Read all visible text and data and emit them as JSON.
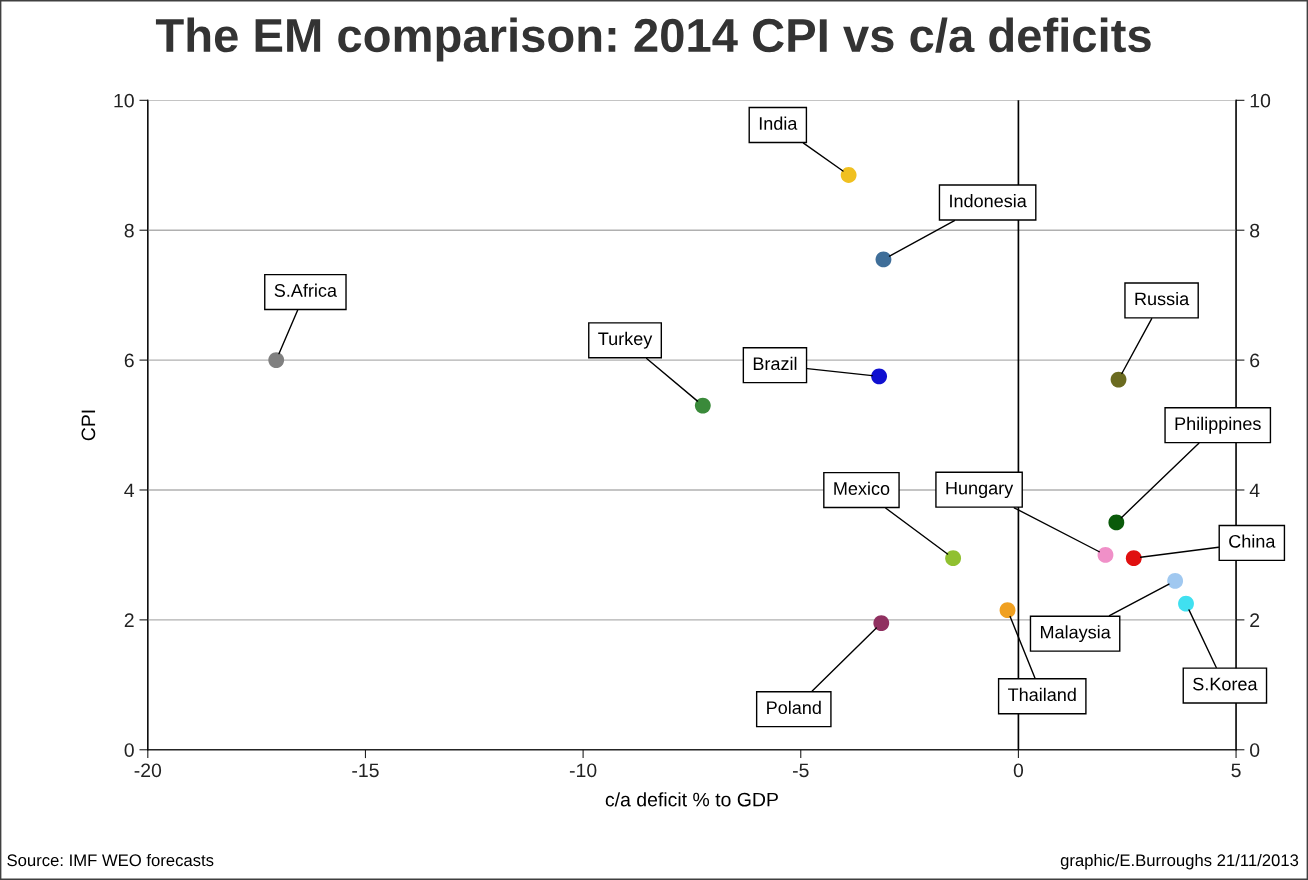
{
  "chart_data": {
    "type": "scatter",
    "title": "The EM comparison: 2014 CPI vs c/a deficits",
    "xlabel": "c/a deficit % to GDP",
    "ylabel": "CPI",
    "xlim": [
      -20,
      5
    ],
    "xticks": [
      -20,
      -15,
      -10,
      -5,
      0,
      5
    ],
    "ylim": [
      0,
      10
    ],
    "yticks": [
      0,
      2,
      4,
      6,
      8,
      10
    ],
    "y2lim": [
      0,
      10
    ],
    "y2ticks": [
      0,
      2,
      4,
      6,
      8,
      10
    ],
    "grid": "y",
    "legend": false,
    "marker": "circle",
    "ref_lines": [
      {
        "axis": "x",
        "value": 0,
        "color": "#000000"
      }
    ],
    "series": [
      {
        "name": "India",
        "color": "#f0c020",
        "x": [
          -3.9
        ],
        "values": [
          8.85
        ]
      },
      {
        "name": "Indonesia",
        "color": "#3f6e99",
        "x": [
          -3.1
        ],
        "values": [
          7.55
        ]
      },
      {
        "name": "S.Africa",
        "color": "#808080",
        "x": [
          -17.05
        ],
        "values": [
          6.0
        ]
      },
      {
        "name": "Turkey",
        "color": "#3a8a3a",
        "x": [
          -7.25
        ],
        "values": [
          5.3
        ]
      },
      {
        "name": "Brazil",
        "color": "#1010d0",
        "x": [
          -3.2
        ],
        "values": [
          5.75
        ]
      },
      {
        "name": "Russia",
        "color": "#6b6b20",
        "x": [
          2.3
        ],
        "values": [
          5.7
        ]
      },
      {
        "name": "Philippines",
        "color": "#0a5a0a",
        "x": [
          2.25
        ],
        "values": [
          3.5
        ]
      },
      {
        "name": "Hungary",
        "color": "#f090c8",
        "x": [
          2.0
        ],
        "values": [
          3.0
        ]
      },
      {
        "name": "China",
        "color": "#e01010",
        "x": [
          2.65
        ],
        "values": [
          2.95
        ]
      },
      {
        "name": "Mexico",
        "color": "#90c030",
        "x": [
          -1.5
        ],
        "values": [
          2.95
        ]
      },
      {
        "name": "Malaysia",
        "color": "#a0c8f0",
        "x": [
          3.6
        ],
        "values": [
          2.6
        ]
      },
      {
        "name": "S.Korea",
        "color": "#40e0f0",
        "x": [
          3.85
        ],
        "values": [
          2.25
        ]
      },
      {
        "name": "Thailand",
        "color": "#f0a020",
        "x": [
          -0.25
        ],
        "values": [
          2.15
        ]
      },
      {
        "name": "Poland",
        "color": "#903060",
        "x": [
          -3.15
        ],
        "values": [
          1.95
        ]
      }
    ],
    "annotations": [
      "Source: IMF WEO forecasts",
      "graphic/E.Burroughs 21/11/2013"
    ]
  }
}
